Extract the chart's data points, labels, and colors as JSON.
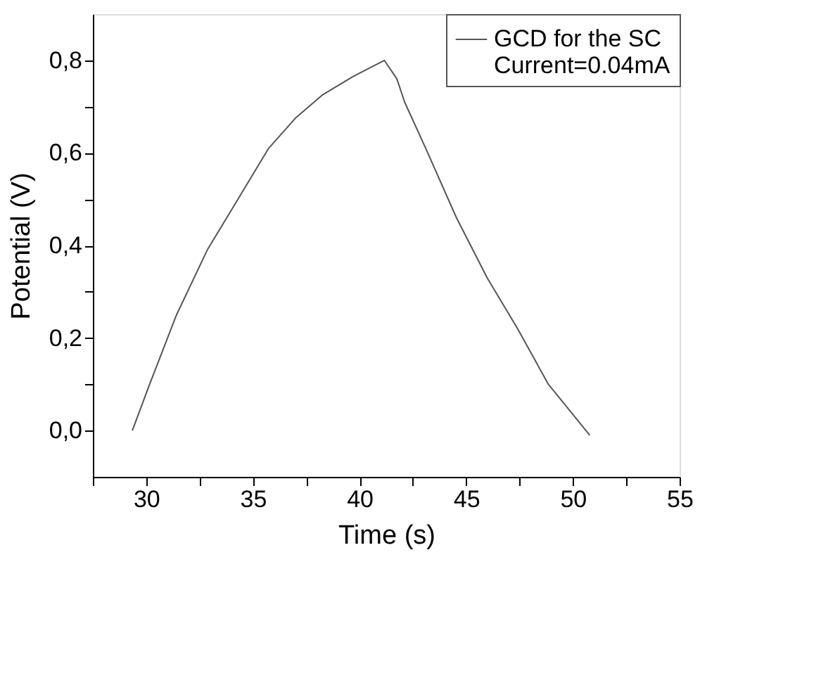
{
  "chart_data": {
    "type": "line",
    "xlabel": "Time (s)",
    "ylabel": "Potential (V)",
    "x": [
      29.35,
      30.16,
      31.42,
      32.86,
      34.3,
      35.74,
      36.99,
      38.25,
      39.69,
      41.16,
      41.75,
      42.11,
      43.1,
      44.54,
      45.98,
      47.41,
      48.85,
      50.79
    ],
    "series": [
      {
        "name": "GCD for the SC\nCurrent=0.04mA",
        "color": "#555555",
        "values": [
          0.0,
          0.1,
          0.25,
          0.39,
          0.5,
          0.61,
          0.675,
          0.725,
          0.765,
          0.8,
          0.76,
          0.71,
          0.61,
          0.46,
          0.33,
          0.22,
          0.1,
          -0.01
        ]
      }
    ],
    "xlim": [
      27.5,
      55
    ],
    "ylim": [
      -0.1,
      0.9
    ],
    "xticks": [
      {
        "value": 27.5,
        "label": null
      },
      30,
      {
        "value": 32.5,
        "label": null
      },
      35,
      {
        "value": 37.5,
        "label": null
      },
      40,
      {
        "value": 42.5,
        "label": null
      },
      45,
      {
        "value": 47.5,
        "label": null
      },
      50,
      {
        "value": 52.5,
        "label": null
      },
      55
    ],
    "yticks": [
      {
        "value": 0.0,
        "label": "0,0"
      },
      {
        "value": 0.1,
        "label": null
      },
      {
        "value": 0.2,
        "label": "0,2"
      },
      {
        "value": 0.3,
        "label": null
      },
      {
        "value": 0.4,
        "label": "0,4"
      },
      {
        "value": 0.5,
        "label": null
      },
      {
        "value": 0.6,
        "label": "0,6"
      },
      {
        "value": 0.7,
        "label": null
      },
      {
        "value": 0.8,
        "label": "0,8"
      }
    ],
    "grid": false,
    "legend": "top right",
    "marker": "none",
    "line_style": "solid"
  }
}
